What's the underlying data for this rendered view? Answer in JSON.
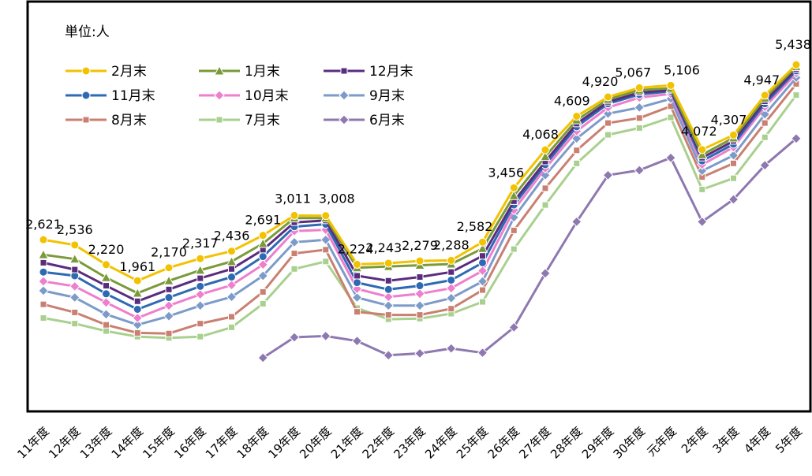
{
  "chart_data": {
    "type": "line",
    "unit_label": "単位:人",
    "categories": [
      "11年度",
      "12年度",
      "13年度",
      "14年度",
      "15年度",
      "16年度",
      "17年度",
      "18年度",
      "19年度",
      "20年度",
      "21年度",
      "22年度",
      "23年度",
      "24年度",
      "25年度",
      "26年度",
      "27年度",
      "28年度",
      "29年度",
      "30年度",
      "元年度",
      "2年度",
      "3年度",
      "4年度",
      "5年度"
    ],
    "series": [
      {
        "name": "2月末",
        "color": "#F2C200",
        "marker": "circle",
        "values": [
          2621,
          2536,
          2220,
          1961,
          2170,
          2317,
          2436,
          2691,
          3011,
          3008,
          2224,
          2243,
          2279,
          2288,
          2582,
          3456,
          4068,
          4609,
          4920,
          5067,
          5106,
          4072,
          4307,
          4947,
          5438
        ]
      },
      {
        "name": "1月末",
        "color": "#7A9A3A",
        "marker": "triangle",
        "values": [
          2380,
          2310,
          2010,
          1760,
          1960,
          2130,
          2270,
          2560,
          2970,
          2970,
          2170,
          2190,
          2210,
          2230,
          2480,
          3330,
          3960,
          4550,
          4880,
          5030,
          5060,
          3990,
          4260,
          4900,
          5410
        ]
      },
      {
        "name": "12月末",
        "color": "#5A2C7E",
        "marker": "square",
        "values": [
          2250,
          2140,
          1880,
          1630,
          1820,
          2000,
          2150,
          2460,
          2900,
          2930,
          2040,
          1960,
          2020,
          2100,
          2360,
          3240,
          3880,
          4490,
          4840,
          4990,
          5030,
          3940,
          4210,
          4850,
          5370
        ]
      },
      {
        "name": "11月末",
        "color": "#2E6AB3",
        "marker": "circle",
        "values": [
          2100,
          2040,
          1750,
          1500,
          1690,
          1870,
          2020,
          2350,
          2830,
          2870,
          1930,
          1820,
          1880,
          1970,
          2250,
          3180,
          3830,
          4440,
          4810,
          4960,
          5010,
          3890,
          4160,
          4810,
          5340
        ]
      },
      {
        "name": "10月末",
        "color": "#EE7FCD",
        "marker": "diamond",
        "values": [
          1950,
          1870,
          1610,
          1360,
          1560,
          1740,
          1890,
          2220,
          2760,
          2780,
          1830,
          1700,
          1750,
          1840,
          2120,
          3100,
          3770,
          4370,
          4750,
          4910,
          4970,
          3830,
          4110,
          4760,
          5300
        ]
      },
      {
        "name": "9月末",
        "color": "#7D9BC9",
        "marker": "diamond",
        "values": [
          1800,
          1690,
          1420,
          1250,
          1390,
          1560,
          1700,
          2040,
          2580,
          2620,
          1690,
          1560,
          1560,
          1680,
          1950,
          2980,
          3660,
          4250,
          4650,
          4750,
          4890,
          3730,
          3980,
          4640,
          5230
        ]
      },
      {
        "name": "8月末",
        "color": "#C98071",
        "marker": "square",
        "values": [
          1580,
          1450,
          1250,
          1120,
          1110,
          1270,
          1380,
          1780,
          2400,
          2460,
          1460,
          1410,
          1410,
          1510,
          1810,
          2770,
          3450,
          4060,
          4500,
          4580,
          4770,
          3630,
          3850,
          4500,
          5130
        ]
      },
      {
        "name": "7月末",
        "color": "#A9D08E",
        "marker": "square",
        "values": [
          1360,
          1270,
          1150,
          1060,
          1040,
          1060,
          1210,
          1590,
          2150,
          2270,
          1520,
          1340,
          1350,
          1430,
          1620,
          2470,
          3180,
          3850,
          4310,
          4420,
          4590,
          3430,
          3610,
          4270,
          4950
        ]
      },
      {
        "name": "6月末",
        "color": "#8E78B0",
        "marker": "diamond",
        "values": [
          null,
          null,
          null,
          null,
          null,
          null,
          null,
          720,
          1050,
          1070,
          990,
          760,
          790,
          870,
          800,
          1210,
          2080,
          2910,
          3660,
          3740,
          3940,
          2910,
          3270,
          3820,
          4250
        ]
      }
    ],
    "data_labels": [
      "2,621",
      "2,536",
      "2,220",
      "1,961",
      "2,170",
      "2,317",
      "2,436",
      "2,691",
      "3,011",
      "3,008",
      "2,224",
      "2,243",
      "2,279",
      "2,288",
      "2,582",
      "3,456",
      "4,068",
      "4,609",
      "4,920",
      "5,067",
      "5,106",
      "4,072",
      "4,307",
      "4,947",
      "5,438"
    ],
    "legend_position": "top-left",
    "grid": false
  }
}
